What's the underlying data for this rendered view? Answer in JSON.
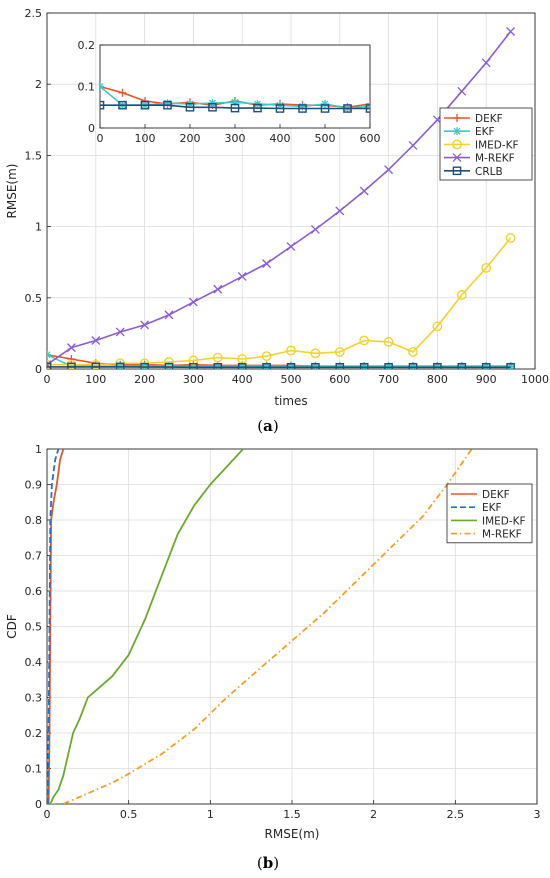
{
  "figure": {
    "panel_a_label": {
      "open": "(",
      "letter": "a",
      "close": ")"
    },
    "panel_b_label": {
      "open": "(",
      "letter": "b",
      "close": ")"
    }
  },
  "chart_data": [
    {
      "type": "line",
      "xlabel": "times",
      "ylabel": "RMSE(m)",
      "xlim": [
        0,
        1000
      ],
      "ylim": [
        0,
        2.5
      ],
      "xticks": [
        0,
        100,
        200,
        300,
        400,
        500,
        600,
        700,
        800,
        900,
        1000
      ],
      "yticks": [
        0,
        0.5,
        1,
        1.5,
        2,
        2.5
      ],
      "grid": true,
      "legend_position": "right",
      "x": [
        0,
        50,
        100,
        150,
        200,
        250,
        300,
        350,
        400,
        450,
        500,
        550,
        600,
        650,
        700,
        750,
        800,
        850,
        900,
        950
      ],
      "series": [
        {
          "name": "DEKF",
          "color": "#e8542a",
          "marker": "plus",
          "values": [
            0.1,
            0.07,
            0.04,
            0.03,
            0.03,
            0.025,
            0.03,
            0.025,
            0.025,
            0.025,
            0.025,
            0.02,
            0.02,
            0.02,
            0.02,
            0.02,
            0.02,
            0.02,
            0.02,
            0.02
          ]
        },
        {
          "name": "EKF",
          "color": "#3fc8c8",
          "marker": "star",
          "values": [
            0.1,
            0.02,
            0.02,
            0.02,
            0.02,
            0.02,
            0.02,
            0.02,
            0.02,
            0.02,
            0.02,
            0.02,
            0.02,
            0.02,
            0.02,
            0.02,
            0.02,
            0.02,
            0.02,
            0.02
          ]
        },
        {
          "name": "IMED-KF",
          "color": "#f2d22c",
          "marker": "circle",
          "values": [
            0.03,
            0.03,
            0.03,
            0.04,
            0.04,
            0.05,
            0.06,
            0.08,
            0.07,
            0.09,
            0.13,
            0.11,
            0.12,
            0.2,
            0.19,
            0.12,
            0.3,
            0.52,
            0.71,
            0.92
          ]
        },
        {
          "name": "M-REKF",
          "color": "#8a5cd6",
          "marker": "x",
          "values": [
            0.03,
            0.15,
            0.2,
            0.26,
            0.31,
            0.38,
            0.47,
            0.56,
            0.65,
            0.74,
            0.86,
            0.98,
            1.11,
            1.25,
            1.4,
            1.57,
            1.75,
            1.95,
            2.15,
            2.37
          ]
        },
        {
          "name": "CRLB",
          "color": "#1f4e79",
          "marker": "square",
          "values": [
            0.015,
            0.015,
            0.015,
            0.015,
            0.013,
            0.013,
            0.012,
            0.012,
            0.012,
            0.012,
            0.012,
            0.012,
            0.012,
            0.012,
            0.012,
            0.012,
            0.012,
            0.012,
            0.012,
            0.012
          ]
        }
      ],
      "inset": {
        "xlim": [
          0,
          600
        ],
        "ylim": [
          0,
          0.2
        ],
        "xticks": [
          0,
          100,
          200,
          300,
          400,
          500,
          600
        ],
        "yticks": [
          0,
          0.1,
          0.2
        ],
        "x": [
          0,
          50,
          100,
          150,
          200,
          250,
          300,
          350,
          400,
          450,
          500,
          550,
          600
        ],
        "series": [
          {
            "name": "DEKF",
            "values": [
              0.1,
              0.085,
              0.065,
              0.058,
              0.062,
              0.055,
              0.065,
              0.055,
              0.058,
              0.055,
              0.055,
              0.05,
              0.058
            ]
          },
          {
            "name": "EKF",
            "values": [
              0.1,
              0.055,
              0.055,
              0.06,
              0.058,
              0.06,
              0.062,
              0.058,
              0.055,
              0.052,
              0.058,
              0.048,
              0.052
            ]
          },
          {
            "name": "CRLB",
            "values": [
              0.055,
              0.055,
              0.055,
              0.055,
              0.05,
              0.05,
              0.048,
              0.048,
              0.047,
              0.047,
              0.047,
              0.047,
              0.047
            ]
          }
        ]
      }
    },
    {
      "type": "line",
      "xlabel": "RMSE(m)",
      "ylabel": "CDF",
      "xlim": [
        0,
        3
      ],
      "ylim": [
        0,
        1
      ],
      "xticks": [
        0,
        0.5,
        1,
        1.5,
        2,
        2.5,
        3
      ],
      "yticks": [
        0,
        0.1,
        0.2,
        0.3,
        0.4,
        0.5,
        0.6,
        0.7,
        0.8,
        0.9,
        1
      ],
      "grid": true,
      "legend_position": "top-right",
      "series": [
        {
          "name": "DEKF",
          "color": "#e8542a",
          "style": "solid",
          "points": [
            [
              0.01,
              0
            ],
            [
              0.015,
              0.2
            ],
            [
              0.02,
              0.5
            ],
            [
              0.025,
              0.8
            ],
            [
              0.04,
              0.85
            ],
            [
              0.06,
              0.9
            ],
            [
              0.08,
              0.97
            ],
            [
              0.1,
              1.0
            ]
          ]
        },
        {
          "name": "EKF",
          "color": "#1f73c8",
          "style": "dashed",
          "points": [
            [
              0.005,
              0
            ],
            [
              0.01,
              0.2
            ],
            [
              0.015,
              0.5
            ],
            [
              0.02,
              0.8
            ],
            [
              0.03,
              0.9
            ],
            [
              0.05,
              0.97
            ],
            [
              0.07,
              1.0
            ]
          ]
        },
        {
          "name": "IMED-KF",
          "color": "#6aaa2a",
          "style": "solid",
          "points": [
            [
              0.02,
              0
            ],
            [
              0.04,
              0.02
            ],
            [
              0.07,
              0.04
            ],
            [
              0.1,
              0.08
            ],
            [
              0.13,
              0.14
            ],
            [
              0.16,
              0.2
            ],
            [
              0.2,
              0.24
            ],
            [
              0.25,
              0.3
            ],
            [
              0.3,
              0.32
            ],
            [
              0.4,
              0.36
            ],
            [
              0.5,
              0.42
            ],
            [
              0.6,
              0.52
            ],
            [
              0.7,
              0.64
            ],
            [
              0.8,
              0.76
            ],
            [
              0.9,
              0.84
            ],
            [
              1.0,
              0.9
            ],
            [
              1.1,
              0.95
            ],
            [
              1.2,
              1.0
            ]
          ]
        },
        {
          "name": "M-REKF",
          "color": "#f0a020",
          "style": "dash-dot",
          "points": [
            [
              0.02,
              0
            ],
            [
              0.1,
              0.0
            ],
            [
              0.2,
              0.02
            ],
            [
              0.3,
              0.04
            ],
            [
              0.4,
              0.06
            ],
            [
              0.5,
              0.085
            ],
            [
              0.7,
              0.14
            ],
            [
              0.9,
              0.21
            ],
            [
              1.1,
              0.3
            ],
            [
              1.3,
              0.38
            ],
            [
              1.5,
              0.46
            ],
            [
              1.7,
              0.54
            ],
            [
              1.9,
              0.63
            ],
            [
              2.1,
              0.72
            ],
            [
              2.3,
              0.81
            ],
            [
              2.45,
              0.9
            ],
            [
              2.6,
              1.0
            ]
          ]
        }
      ]
    }
  ]
}
